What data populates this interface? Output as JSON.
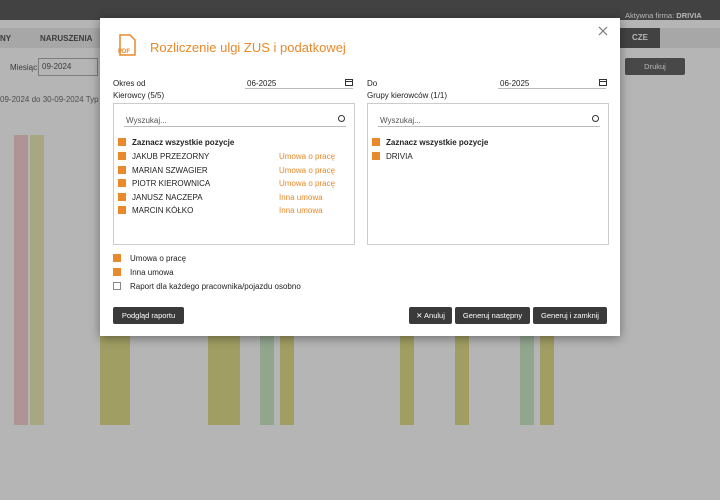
{
  "background": {
    "company_label": "Aktywna firma:",
    "company": "DRIVIA",
    "tabs": [
      "NY",
      "NARUSZENIA"
    ],
    "tab_right": "CZE",
    "month_label": "Miesiąc:",
    "month": "09-2024",
    "print": "Drukuj",
    "range": "09-2024 do 30-09-2024",
    "range_type": "Typ zat"
  },
  "dialog": {
    "icon_label": "PDF",
    "title": "Rozliczenie ulgi ZUS i podatkowej",
    "period_from_label": "Okres od",
    "period_from": "06-2025",
    "period_to_label": "Do",
    "period_to": "06-2025",
    "drivers": {
      "label": "Kierowcy (5/5)",
      "search_placeholder": "Wyszukaj...",
      "select_all": "Zaznacz wszystkie pozycje",
      "select_all_checked": true,
      "items": [
        {
          "name": "JAKUB PRZEZORNY",
          "contract": "Umowa o pracę",
          "checked": true
        },
        {
          "name": "MARIAN SZWAGIER",
          "contract": "Umowa o pracę",
          "checked": true
        },
        {
          "name": "PIOTR KIEROWNICA",
          "contract": "Umowa o pracę",
          "checked": true
        },
        {
          "name": "JANUSZ NACZEPA",
          "contract": "Inna umowa",
          "checked": true
        },
        {
          "name": "MARCIN KÓŁKO",
          "contract": "Inna umowa",
          "checked": true
        }
      ]
    },
    "groups": {
      "label": "Grupy kierowców (1/1)",
      "search_placeholder": "Wyszukaj...",
      "select_all": "Zaznacz wszystkie pozycje",
      "select_all_checked": true,
      "items": [
        {
          "name": "DRIVIA",
          "checked": true
        }
      ]
    },
    "options": [
      {
        "label": "Umowa o pracę",
        "checked": true
      },
      {
        "label": "Inna umowa",
        "checked": true
      },
      {
        "label": "Raport dla każdego pracownika/pojazdu osobno",
        "checked": false
      }
    ],
    "buttons": {
      "preview": "Podgląd raportu",
      "cancel": "Anuluj",
      "generate_next": "Generuj następny",
      "generate_close": "Generuj i zamknij"
    }
  }
}
